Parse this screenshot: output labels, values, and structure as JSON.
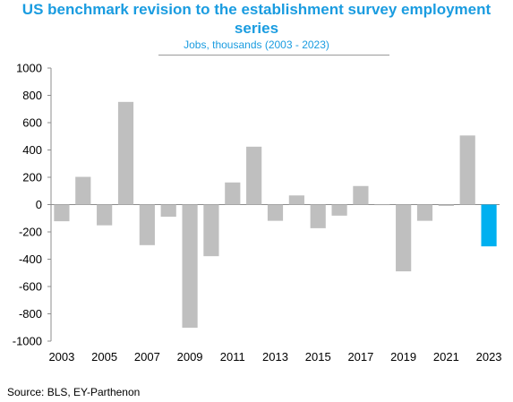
{
  "chart_data": {
    "type": "bar",
    "title": "US benchmark revision to the establishment survey employment series",
    "subtitle": "Jobs, thousands (2003 - 2023)",
    "xlabel": "",
    "ylabel": "",
    "ylim": [
      -1000,
      1000
    ],
    "yticks": [
      1000,
      800,
      600,
      400,
      200,
      0,
      -200,
      -400,
      -600,
      -800,
      -1000
    ],
    "ytick_labels": [
      "1000",
      "800",
      "600",
      "400",
      "200",
      "0",
      "-200",
      "-400",
      "-600",
      "-800",
      "-1000"
    ],
    "categories": [
      "2003",
      "2004",
      "2005",
      "2006",
      "2007",
      "2008",
      "2009",
      "2010",
      "2011",
      "2012",
      "2013",
      "2014",
      "2015",
      "2016",
      "2017",
      "2018",
      "2019",
      "2020",
      "2021",
      "2022",
      "2023"
    ],
    "xtick_labels": [
      "2003",
      "",
      "2005",
      "",
      "2007",
      "",
      "2009",
      "",
      "2011",
      "",
      "2013",
      "",
      "2015",
      "",
      "2017",
      "",
      "2019",
      "",
      "2021",
      "",
      "2023"
    ],
    "values": [
      -122,
      203,
      -152,
      752,
      -297,
      -89,
      -902,
      -378,
      162,
      424,
      -119,
      67,
      -173,
      -81,
      136,
      0,
      -489,
      -119,
      -10,
      506,
      -306
    ],
    "colors": {
      "default": "#bfbfbf",
      "highlight": "#00b0f0",
      "highlight_category": "2023",
      "title": "#1a9ce0"
    },
    "grid": false
  },
  "source": "Source: BLS, EY-Parthenon"
}
